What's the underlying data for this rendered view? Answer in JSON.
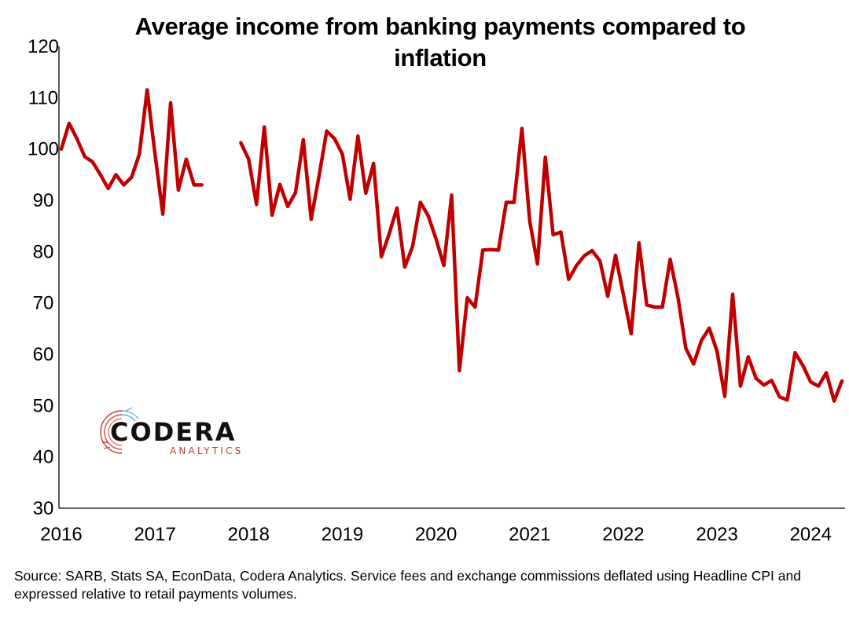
{
  "chart_data": {
    "type": "line",
    "title": "Average income from banking payments compared to inflation",
    "xlabel": "",
    "ylabel": "",
    "ylim": [
      30,
      120
    ],
    "yticks": [
      30,
      40,
      50,
      60,
      70,
      80,
      90,
      100,
      110,
      120
    ],
    "xticks": [
      "2016",
      "2017",
      "2018",
      "2019",
      "2020",
      "2021",
      "2022",
      "2023",
      "2024"
    ],
    "grid": false,
    "color": "#c00000",
    "series": [
      {
        "name": "",
        "values": [
          100,
          105,
          102,
          98.5,
          97.5,
          95,
          92.3,
          95,
          93,
          94.5,
          99,
          111.5,
          99,
          87.3,
          109,
          92,
          98,
          93,
          93,
          null,
          null,
          null,
          null,
          101.2,
          98,
          89.2,
          104.3,
          87.1,
          93.1,
          88.8,
          91.5,
          101.8,
          86.3,
          94.6,
          103.5,
          102,
          99,
          90.2,
          102.5,
          91.4,
          97.2,
          79,
          83.5,
          88.5,
          77,
          81,
          89.6,
          87,
          82.5,
          77.3,
          91,
          56.8,
          71,
          69.2,
          80.3,
          80.4,
          80.3,
          89.6,
          89.6,
          104,
          86,
          77.6,
          98.4,
          83.3,
          83.8,
          74.6,
          77.3,
          79.2,
          80.2,
          78.2,
          71.3,
          79.3,
          71.6,
          64,
          81.7,
          69.6,
          69.2,
          69.2,
          78.5,
          71,
          61.2,
          58.1,
          62.7,
          65.1,
          60.6,
          51.8,
          71.7,
          53.8,
          59.5,
          55.3,
          54,
          54.9,
          51.7,
          51.1,
          60.3,
          57.8,
          54.6,
          53.8,
          56.4,
          50.9,
          54.8
        ]
      }
    ]
  },
  "source_note": "Source: SARB, Stats SA, EconData, Codera Analytics. Service fees and exchange commissions deflated using Headline CPI and expressed relative to retail payments volumes.",
  "logo": {
    "name": "CODERA",
    "sub": "ANALYTICS"
  }
}
